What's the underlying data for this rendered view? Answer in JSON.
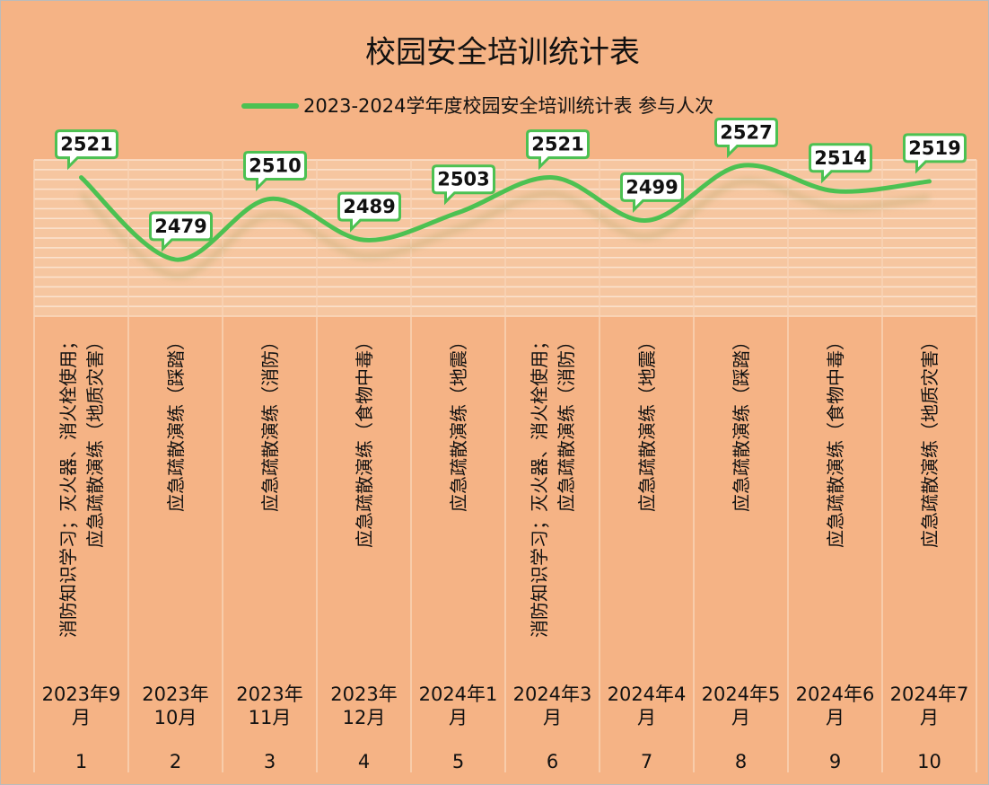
{
  "chart_data": {
    "type": "line",
    "title": "校园安全培训统计表",
    "category_numbers": [
      "1",
      "2",
      "3",
      "4",
      "5",
      "6",
      "7",
      "8",
      "9",
      "10"
    ],
    "categories": [
      "2023年9月",
      "2023年10月",
      "2023年11月",
      "2023年12月",
      "2024年1月",
      "2024年3月",
      "2024年4月",
      "2024年5月",
      "2024年6月",
      "2024年7月"
    ],
    "category_activities": [
      "消防知识学习；灭火器、消火栓使用；应急疏散演练（地质灾害）",
      "应急疏散演练（踩踏）",
      "应急疏散演练（消防）",
      "应急疏散演练（食物中毒）",
      "应急疏散演练（地震）",
      "消防知识学习；灭火器、消火栓使用；应急疏散演练（消防）",
      "应急疏散演练（地震）",
      "应急疏散演练（踩踏）",
      "应急疏散演练（食物中毒）",
      "应急疏散演练（地质灾害）"
    ],
    "series": [
      {
        "name": "2023-2024学年度校园安全培训统计表 参与人次",
        "color": "#4cc152",
        "values": [
          2521,
          2479,
          2510,
          2489,
          2503,
          2521,
          2499,
          2527,
          2514,
          2519
        ]
      }
    ],
    "ylim": [
      2450,
      2530
    ],
    "yticks": [
      2450,
      2455,
      2460,
      2465,
      2470,
      2475,
      2480,
      2485,
      2490,
      2495,
      2500,
      2505,
      2510,
      2515,
      2520,
      2525,
      2530
    ],
    "grid": true
  }
}
